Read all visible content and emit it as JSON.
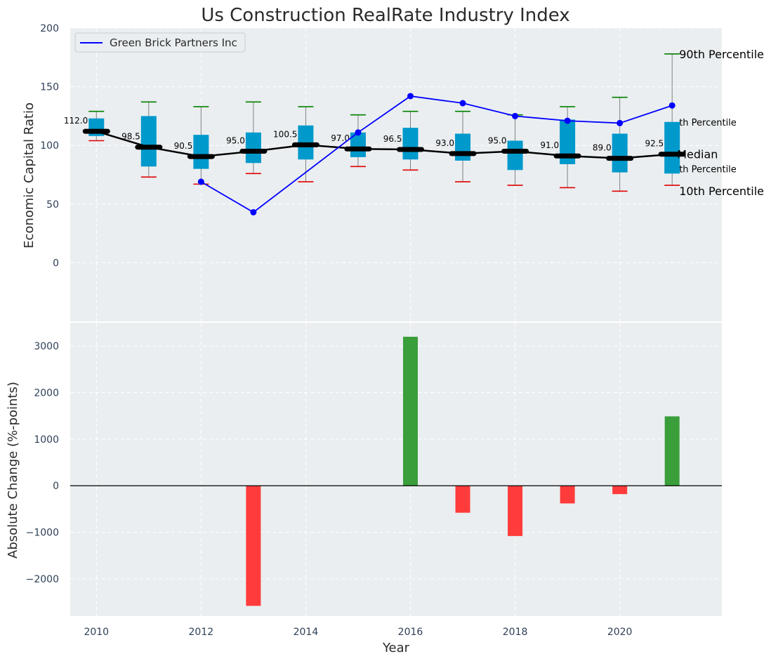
{
  "title": "Us Construction RealRate Industry Index",
  "colors": {
    "panel_bg": "#eaeef0",
    "box": "#0099cc",
    "median_line": "#000000",
    "company_line": "#0000ff",
    "whisker_top": "#008000",
    "whisker_bottom": "#e00000",
    "positive_bar": "#3a9e3a",
    "negative_bar": "#ff3b3b",
    "percentile_blue_text": "#0099cc",
    "tick_text": "#2e4057"
  },
  "chart_data": [
    {
      "type": "box",
      "panel": "top",
      "title": "Us Construction RealRate Industry Index",
      "ylabel": "Economic Capital Ratio",
      "xlabel": "",
      "ylim": [
        -50,
        200
      ],
      "yticks": [
        0,
        50,
        100,
        150,
        200
      ],
      "grid": true,
      "x": [
        2010,
        2011,
        2012,
        2013,
        2014,
        2015,
        2016,
        2017,
        2018,
        2019,
        2020,
        2021
      ],
      "median": [
        112.0,
        98.5,
        90.5,
        95.0,
        100.5,
        97.0,
        96.5,
        93.0,
        95.0,
        91.0,
        89.0,
        92.5
      ],
      "median_labels": [
        "112.0",
        "98.5",
        "90.5",
        "95.0",
        "100.5",
        "97.0",
        "96.5",
        "93.0",
        "95.0",
        "91.0",
        "89.0",
        "92.5"
      ],
      "q1": [
        108,
        82,
        80,
        85,
        88,
        90,
        88,
        87,
        79,
        84,
        77,
        76
      ],
      "q3": [
        123,
        125,
        109,
        111,
        117,
        111,
        115,
        110,
        104,
        122,
        110,
        120
      ],
      "p10": [
        104,
        73,
        67,
        76,
        69,
        82,
        79,
        69,
        66,
        64,
        61,
        66
      ],
      "p90": [
        129,
        137,
        133,
        137,
        133,
        126,
        129,
        129,
        126,
        133,
        141,
        178
      ],
      "series": [
        {
          "name": "Green Brick Partners Inc",
          "x": [
            2012,
            2013,
            2015,
            2016,
            2017,
            2018,
            2019,
            2020,
            2021
          ],
          "values": [
            69,
            43,
            111,
            142,
            136,
            125,
            121,
            119,
            134
          ]
        }
      ],
      "legend": {
        "placement": "top-left",
        "entries": [
          "Green Brick Partners Inc"
        ]
      },
      "annotations": {
        "p90": "90th Percentile",
        "q3": "th Percentile",
        "median": "Median",
        "q1": "th Percentile",
        "p10": "10th Percentile"
      }
    },
    {
      "type": "bar",
      "panel": "bottom",
      "xlabel": "Year",
      "ylabel": "Absolute Change (%-points)",
      "ylim": [
        -2800,
        3500
      ],
      "yticks": [
        -2000,
        -1000,
        0,
        1000,
        2000,
        3000
      ],
      "ytick_labels": [
        "−2000",
        "−1000",
        "0",
        "1000",
        "2000",
        "3000"
      ],
      "xticks": [
        2010,
        2012,
        2014,
        2016,
        2018,
        2020
      ],
      "xlim": [
        2009.5,
        2021.95
      ],
      "grid": true,
      "x": [
        2013,
        2016,
        2017,
        2018,
        2019,
        2020,
        2021
      ],
      "values": [
        -2580,
        3200,
        -580,
        -1080,
        -380,
        -180,
        1490
      ]
    }
  ]
}
